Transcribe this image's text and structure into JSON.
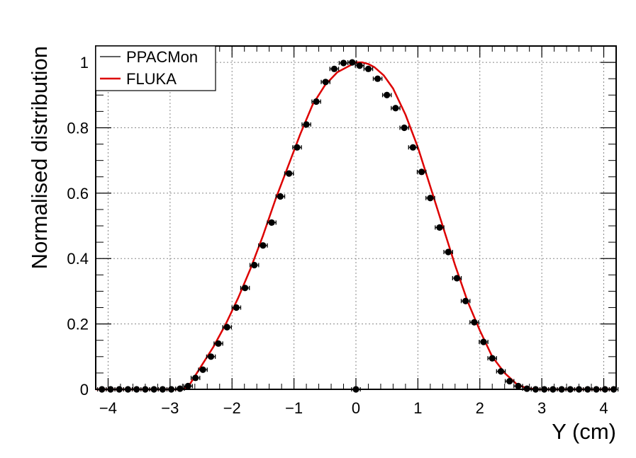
{
  "chart_data": {
    "type": "scatter",
    "title": "",
    "xlabel": "Y (cm)",
    "ylabel": "Normalised distribution",
    "xlim": [
      -4.2,
      4.2
    ],
    "ylim": [
      0,
      1.05
    ],
    "grid": true,
    "legend_position": "top-left",
    "x_ticks": [
      -4,
      -3,
      -2,
      -1,
      0,
      1,
      2,
      3,
      4
    ],
    "x_tick_labels": [
      "−4",
      "−3",
      "−2",
      "−1",
      "0",
      "1",
      "2",
      "3",
      "4"
    ],
    "y_ticks": [
      0,
      0.2,
      0.4,
      0.6,
      0.8,
      1
    ],
    "y_tick_labels": [
      "0",
      "0.2",
      "0.4",
      "0.6",
      "0.8",
      "1"
    ],
    "series": [
      {
        "name": "PPACMon",
        "kind": "points-with-xerr",
        "color": "#000000",
        "x_err": 0.07,
        "x": [
          -4.1,
          -3.96,
          -3.82,
          -3.68,
          -3.54,
          -3.4,
          -3.26,
          -3.12,
          -2.98,
          -2.84,
          -2.71,
          -2.59,
          -2.47,
          -2.34,
          -2.22,
          -2.08,
          -1.93,
          -1.79,
          -1.64,
          -1.5,
          -1.36,
          -1.22,
          -1.08,
          -0.95,
          -0.8,
          -0.64,
          -0.49,
          -0.35,
          -0.2,
          -0.06,
          0.06,
          0.2,
          0.35,
          0.5,
          0.64,
          0.78,
          0.92,
          1.06,
          1.2,
          1.35,
          1.49,
          1.63,
          1.77,
          1.91,
          2.06,
          2.2,
          2.34,
          2.48,
          2.62,
          2.76,
          2.9,
          3.04,
          3.18,
          3.32,
          3.46,
          3.6,
          3.74,
          3.88,
          4.02,
          4.16,
          0.0
        ],
        "y": [
          0,
          0,
          0,
          0,
          0,
          0,
          0,
          0,
          0,
          0.002,
          0.01,
          0.035,
          0.06,
          0.1,
          0.14,
          0.19,
          0.25,
          0.31,
          0.38,
          0.44,
          0.51,
          0.59,
          0.66,
          0.74,
          0.81,
          0.88,
          0.94,
          0.98,
          0.998,
          1.0,
          0.99,
          0.98,
          0.95,
          0.9,
          0.86,
          0.8,
          0.74,
          0.665,
          0.585,
          0.495,
          0.42,
          0.34,
          0.27,
          0.205,
          0.145,
          0.095,
          0.055,
          0.025,
          0.01,
          0.002,
          0,
          0,
          0,
          0,
          0,
          0,
          0,
          0,
          0,
          0,
          0.0
        ]
      },
      {
        "name": "FLUKA",
        "kind": "line",
        "color": "#dd0000",
        "x": [
          -4.2,
          -2.8,
          -2.7,
          -2.5,
          -2.3,
          -2.1,
          -1.9,
          -1.7,
          -1.5,
          -1.3,
          -1.1,
          -0.9,
          -0.7,
          -0.5,
          -0.3,
          -0.1,
          0.0,
          0.1,
          0.2,
          0.3,
          0.45,
          0.6,
          0.8,
          1.0,
          1.2,
          1.4,
          1.6,
          1.8,
          2.0,
          2.2,
          2.4,
          2.6,
          2.75,
          2.9,
          4.2
        ],
        "y": [
          0,
          0,
          0.01,
          0.07,
          0.13,
          0.2,
          0.28,
          0.37,
          0.47,
          0.58,
          0.68,
          0.78,
          0.87,
          0.93,
          0.97,
          0.99,
          1.0,
          1.0,
          0.995,
          0.985,
          0.96,
          0.92,
          0.84,
          0.74,
          0.62,
          0.5,
          0.38,
          0.27,
          0.18,
          0.1,
          0.05,
          0.015,
          0.004,
          0,
          0
        ]
      }
    ]
  }
}
